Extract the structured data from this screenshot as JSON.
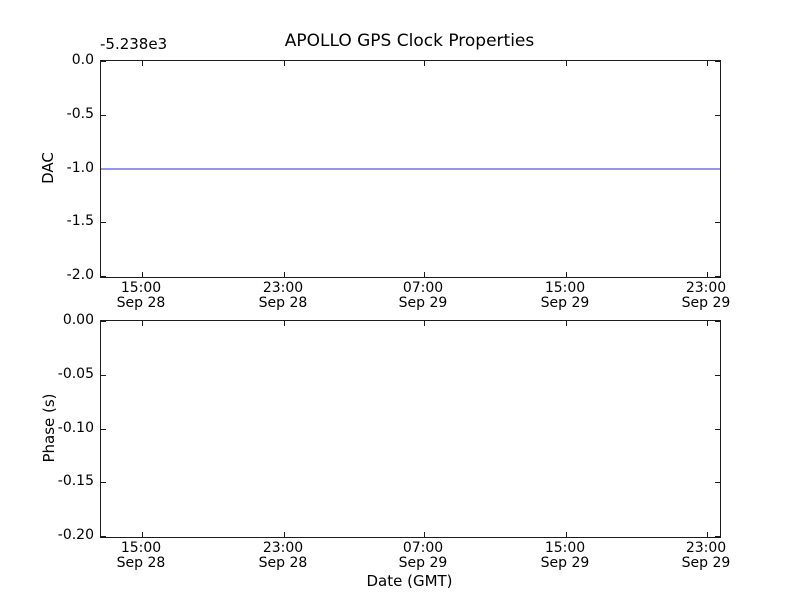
{
  "figure": {
    "background": "#ffffff",
    "spine_color": "#1c1c1c",
    "text_color": "#000000"
  },
  "chart_data": [
    {
      "type": "line",
      "title": "APOLLO GPS Clock Properties",
      "offset_text": "-5.238e3",
      "ylabel": "DAC",
      "xlabel": "",
      "ylim": [
        -2.0,
        0.0
      ],
      "grid": false,
      "legend": "none",
      "yticks": [
        {
          "label": "0.0",
          "value": 0.0
        },
        {
          "label": "-0.5",
          "value": -0.5
        },
        {
          "label": "-1.0",
          "value": -1.0
        },
        {
          "label": "-1.5",
          "value": -1.5
        },
        {
          "label": "-2.0",
          "value": -2.0
        }
      ],
      "xticks": [
        {
          "time": "15:00",
          "date": "Sep 28",
          "frac": 0.0662
        },
        {
          "time": "23:00",
          "date": "Sep 28",
          "frac": 0.2956
        },
        {
          "time": "07:00",
          "date": "Sep 29",
          "frac": 0.5234
        },
        {
          "time": "15:00",
          "date": "Sep 29",
          "frac": 0.7528
        },
        {
          "time": "23:00",
          "date": "Sep 29",
          "frac": 0.9806
        }
      ],
      "series": [
        {
          "name": "DAC",
          "color": "#9595ee",
          "constant_y": -1.0,
          "x_span": "full-axis"
        }
      ]
    },
    {
      "type": "line",
      "title": "",
      "offset_text": "",
      "ylabel": "Phase (s)",
      "xlabel": "Date (GMT)",
      "ylim": [
        -0.2,
        0.0
      ],
      "grid": false,
      "legend": "none",
      "yticks": [
        {
          "label": "0.00",
          "value": 0.0
        },
        {
          "label": "-0.05",
          "value": -0.05
        },
        {
          "label": "-0.10",
          "value": -0.1
        },
        {
          "label": "-0.15",
          "value": -0.15
        },
        {
          "label": "-0.20",
          "value": -0.2
        }
      ],
      "xticks": [
        {
          "time": "15:00",
          "date": "Sep 28",
          "frac": 0.0662
        },
        {
          "time": "23:00",
          "date": "Sep 28",
          "frac": 0.2956
        },
        {
          "time": "07:00",
          "date": "Sep 29",
          "frac": 0.5234
        },
        {
          "time": "15:00",
          "date": "Sep 29",
          "frac": 0.7528
        },
        {
          "time": "23:00",
          "date": "Sep 29",
          "frac": 0.9806
        }
      ],
      "series": []
    }
  ]
}
